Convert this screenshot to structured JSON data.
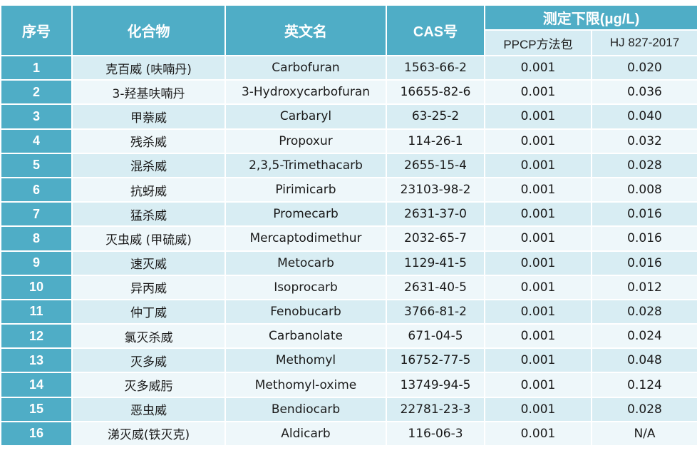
{
  "header": {
    "seq": "序号",
    "compound": "化合物",
    "english": "英文名",
    "cas": "CAS号",
    "limit_group": "测定下限(μg/L)",
    "ppcp": "PPCP方法包",
    "hj": "HJ 827-2017"
  },
  "rows": [
    {
      "n": "1",
      "cn": "克百威 (呋喃丹)",
      "en": "Carbofuran",
      "cas": "1563-66-2",
      "ppcp": "0.001",
      "hj": "0.020"
    },
    {
      "n": "2",
      "cn": "3-羟基呋喃丹",
      "en": "3-Hydroxycarbofuran",
      "cas": "16655-82-6",
      "ppcp": "0.001",
      "hj": "0.036"
    },
    {
      "n": "3",
      "cn": "甲萘威",
      "en": "Carbaryl",
      "cas": "63-25-2",
      "ppcp": "0.001",
      "hj": "0.040"
    },
    {
      "n": "4",
      "cn": "残杀威",
      "en": "Propoxur",
      "cas": "114-26-1",
      "ppcp": "0.001",
      "hj": "0.032"
    },
    {
      "n": "5",
      "cn": "混杀威",
      "en": "2,3,5-Trimethacarb",
      "cas": "2655-15-4",
      "ppcp": "0.001",
      "hj": "0.028"
    },
    {
      "n": "6",
      "cn": "抗蚜威",
      "en": "Pirimicarb",
      "cas": "23103-98-2",
      "ppcp": "0.001",
      "hj": "0.008"
    },
    {
      "n": "7",
      "cn": "猛杀威",
      "en": "Promecarb",
      "cas": "2631-37-0",
      "ppcp": "0.001",
      "hj": "0.016"
    },
    {
      "n": "8",
      "cn": "灭虫威 (甲硫威)",
      "en": "Mercaptodimethur",
      "cas": "2032-65-7",
      "ppcp": "0.001",
      "hj": "0.016"
    },
    {
      "n": "9",
      "cn": "速灭威",
      "en": "Metocarb",
      "cas": "1129-41-5",
      "ppcp": "0.001",
      "hj": "0.016"
    },
    {
      "n": "10",
      "cn": "异丙威",
      "en": "Isoprocarb",
      "cas": "2631-40-5",
      "ppcp": "0.001",
      "hj": "0.012"
    },
    {
      "n": "11",
      "cn": "仲丁威",
      "en": "Fenobucarb",
      "cas": "3766-81-2",
      "ppcp": "0.001",
      "hj": "0.028"
    },
    {
      "n": "12",
      "cn": "氯灭杀威",
      "en": "Carbanolate",
      "cas": "671-04-5",
      "ppcp": "0.001",
      "hj": "0.024"
    },
    {
      "n": "13",
      "cn": "灭多威",
      "en": "Methomyl",
      "cas": "16752-77-5",
      "ppcp": "0.001",
      "hj": "0.048"
    },
    {
      "n": "14",
      "cn": "灭多威肟",
      "en": "Methomyl-oxime",
      "cas": "13749-94-5",
      "ppcp": "0.001",
      "hj": "0.124"
    },
    {
      "n": "15",
      "cn": "恶虫威",
      "en": "Bendiocarb",
      "cas": "22781-23-3",
      "ppcp": "0.001",
      "hj": "0.028"
    },
    {
      "n": "16",
      "cn": "涕灭威(铁灭克)",
      "en": "Aldicarb",
      "cas": "116-06-3",
      "ppcp": "0.001",
      "hj": "N/A"
    }
  ]
}
